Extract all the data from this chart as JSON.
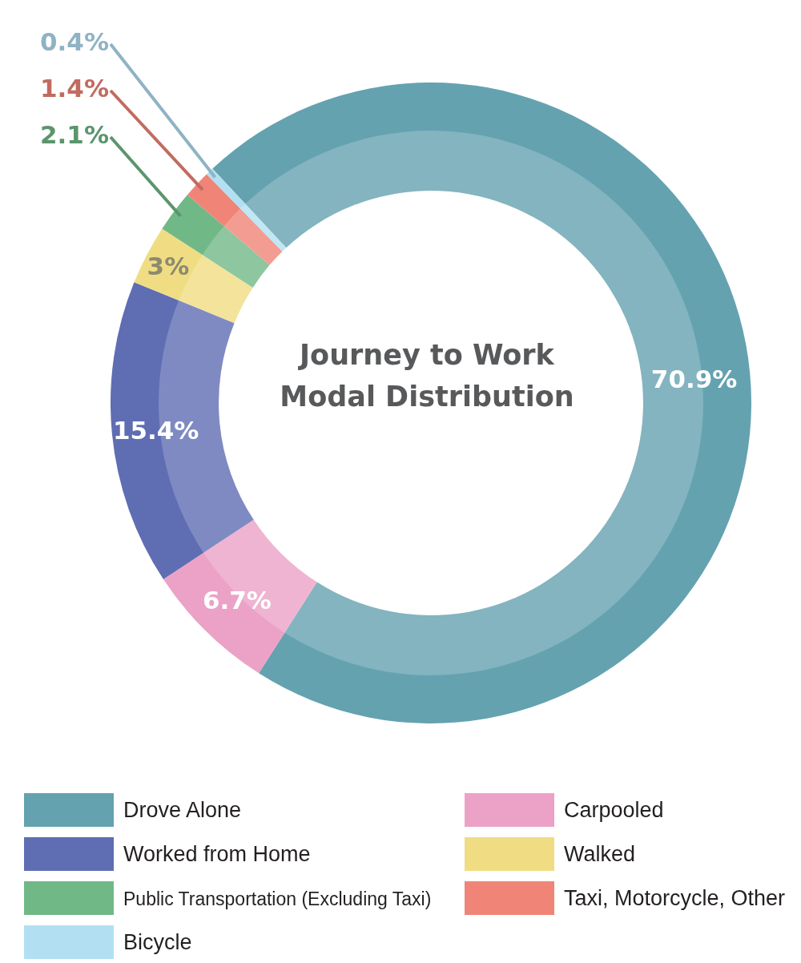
{
  "chart_data": {
    "type": "donut",
    "title": "Journey to Work\nModal Distribution",
    "categories": [
      "Drove Alone",
      "Carpooled",
      "Worked from Home",
      "Walked",
      "Public Transportation (Excluding Taxi)",
      "Taxi, Motorcycle, Other",
      "Bicycle"
    ],
    "values": [
      70.9,
      6.7,
      15.4,
      3,
      2.1,
      1.4,
      0.4
    ],
    "colors": [
      "#64a2b0",
      "#eba2c6",
      "#5f6db3",
      "#f0dd83",
      "#71b887",
      "#f08477",
      "#b2e0f2"
    ],
    "value_labels": [
      "70.9%",
      "6.7%",
      "15.4%",
      "3%",
      "2.1%",
      "1.4%",
      "0.4%"
    ],
    "legend": "bottom"
  }
}
